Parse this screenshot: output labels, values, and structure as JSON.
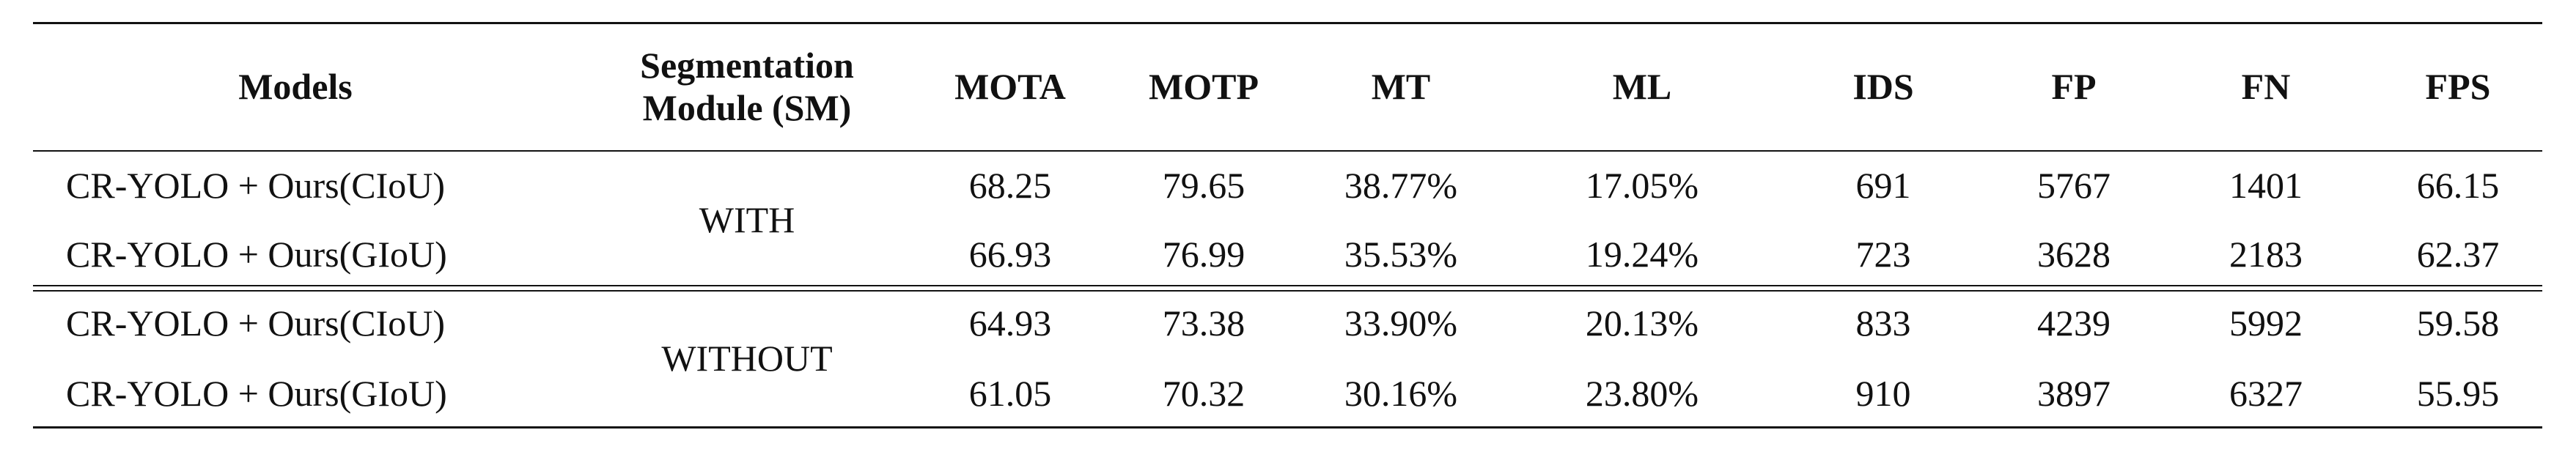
{
  "table": {
    "header": [
      "Models",
      "Segmentation Module (SM)",
      "MOTA",
      "MOTP",
      "MT",
      "ML",
      "IDS",
      "FP",
      "FN",
      "FPS"
    ],
    "groups": [
      {
        "sm": "WITH",
        "rows": [
          [
            "CR-YOLO + Ours(CIoU)",
            "68.25",
            "79.65",
            "38.77%",
            "17.05%",
            "691",
            "5767",
            "1401",
            "66.15"
          ],
          [
            "CR-YOLO + Ours(GIoU)",
            "66.93",
            "76.99",
            "35.53%",
            "19.24%",
            "723",
            "3628",
            "2183",
            "62.37"
          ]
        ]
      },
      {
        "sm": "WITHOUT",
        "rows": [
          [
            "CR-YOLO + Ours(CIoU)",
            "64.93",
            "73.38",
            "33.90%",
            "20.13%",
            "833",
            "4239",
            "5992",
            "59.58"
          ],
          [
            "CR-YOLO + Ours(GIoU)",
            "61.05",
            "70.32",
            "30.16%",
            "23.80%",
            "910",
            "3897",
            "6327",
            "55.95"
          ]
        ]
      }
    ]
  }
}
